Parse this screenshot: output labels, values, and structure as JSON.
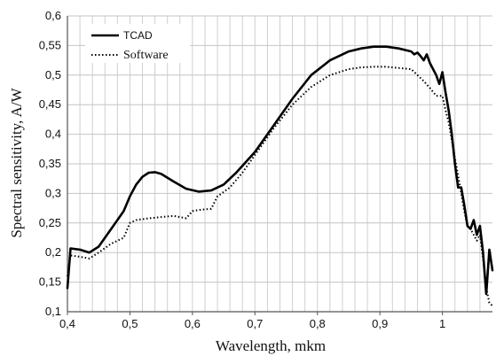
{
  "chart_data": {
    "type": "line",
    "title": "",
    "xlabel": "Wavelength, mkm",
    "ylabel": "Spectral sensitivity, A/W",
    "xlim": [
      0.4,
      1.08
    ],
    "ylim": [
      0.1,
      0.6
    ],
    "x_ticks": [
      0.4,
      0.5,
      0.6,
      0.7,
      0.8,
      0.9,
      1.0
    ],
    "x_tick_labels": [
      "0,4",
      "0,5",
      "0,6",
      "0,7",
      "0,8",
      "0,9",
      "1"
    ],
    "y_ticks": [
      0.1,
      0.15,
      0.2,
      0.25,
      0.3,
      0.35,
      0.4,
      0.45,
      0.5,
      0.55,
      0.6
    ],
    "y_tick_labels": [
      "0,1",
      "0,15",
      "0,2",
      "0,25",
      "0,3",
      "0,35",
      "0,4",
      "0,45",
      "0,5",
      "0,55",
      "0,6"
    ],
    "grid": "on",
    "legend_position": "top-left",
    "series": [
      {
        "name": "TCAD",
        "style": "solid",
        "x": [
          0.4,
          0.405,
          0.42,
          0.435,
          0.45,
          0.47,
          0.49,
          0.5,
          0.51,
          0.52,
          0.53,
          0.54,
          0.55,
          0.57,
          0.59,
          0.61,
          0.63,
          0.65,
          0.67,
          0.7,
          0.73,
          0.76,
          0.79,
          0.82,
          0.85,
          0.87,
          0.89,
          0.91,
          0.93,
          0.95,
          0.955,
          0.96,
          0.965,
          0.97,
          0.975,
          0.98,
          0.985,
          0.99,
          0.995,
          1.0,
          1.005,
          1.01,
          1.015,
          1.02,
          1.025,
          1.03,
          1.035,
          1.04,
          1.045,
          1.05,
          1.055,
          1.06,
          1.065,
          1.07,
          1.075,
          1.08
        ],
        "y": [
          0.14,
          0.207,
          0.205,
          0.2,
          0.21,
          0.24,
          0.27,
          0.295,
          0.315,
          0.328,
          0.335,
          0.336,
          0.333,
          0.32,
          0.308,
          0.303,
          0.305,
          0.315,
          0.335,
          0.37,
          0.415,
          0.46,
          0.5,
          0.525,
          0.54,
          0.545,
          0.548,
          0.548,
          0.545,
          0.54,
          0.535,
          0.538,
          0.532,
          0.525,
          0.535,
          0.52,
          0.51,
          0.5,
          0.485,
          0.505,
          0.47,
          0.44,
          0.4,
          0.35,
          0.31,
          0.31,
          0.28,
          0.245,
          0.24,
          0.255,
          0.23,
          0.245,
          0.2,
          0.13,
          0.205,
          0.17
        ]
      },
      {
        "name": "Software",
        "style": "dotted",
        "x": [
          0.4,
          0.405,
          0.42,
          0.435,
          0.45,
          0.47,
          0.49,
          0.5,
          0.51,
          0.53,
          0.55,
          0.57,
          0.58,
          0.59,
          0.6,
          0.61,
          0.62,
          0.63,
          0.64,
          0.66,
          0.68,
          0.7,
          0.73,
          0.76,
          0.79,
          0.82,
          0.85,
          0.87,
          0.89,
          0.91,
          0.93,
          0.95,
          0.96,
          0.97,
          0.98,
          0.99,
          1.0,
          1.005,
          1.01,
          1.015,
          1.02,
          1.025,
          1.03,
          1.035,
          1.04,
          1.045,
          1.05,
          1.055,
          1.06,
          1.065,
          1.07,
          1.075,
          1.08
        ],
        "y": [
          0.16,
          0.195,
          0.193,
          0.19,
          0.2,
          0.215,
          0.225,
          0.25,
          0.255,
          0.258,
          0.26,
          0.262,
          0.26,
          0.258,
          0.27,
          0.272,
          0.273,
          0.274,
          0.295,
          0.31,
          0.335,
          0.365,
          0.41,
          0.45,
          0.48,
          0.5,
          0.51,
          0.513,
          0.514,
          0.514,
          0.512,
          0.51,
          0.5,
          0.49,
          0.478,
          0.465,
          0.465,
          0.44,
          0.42,
          0.39,
          0.36,
          0.33,
          0.3,
          0.27,
          0.245,
          0.24,
          0.23,
          0.22,
          0.23,
          0.19,
          0.14,
          0.115,
          0.11
        ]
      }
    ]
  }
}
